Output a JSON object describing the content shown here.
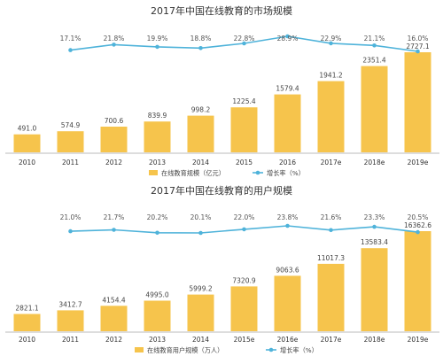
{
  "colors": {
    "bar": "#F6C44C",
    "line": "#4FB3DA",
    "axis": "#BBBBBB",
    "text": "#333333"
  },
  "chart_data": [
    {
      "type": "bar",
      "title": "2017年中国在线教育的市场规模",
      "categories": [
        "2010",
        "2011",
        "2012",
        "2013",
        "2014",
        "2015",
        "2016",
        "2017e",
        "2018e",
        "2019e"
      ],
      "series": [
        {
          "name": "在线教育规模（亿元）",
          "type": "bar",
          "values": [
            491.0,
            574.9,
            700.6,
            839.9,
            998.2,
            1225.4,
            1579.4,
            1941.2,
            2351.4,
            2727.1
          ],
          "labels": [
            "491.0",
            "574.9",
            "700.6",
            "839.9",
            "998.2",
            "1225.4",
            "1579.4",
            "1941.2",
            "2351.4",
            "2727.1"
          ]
        },
        {
          "name": "增长率（%）",
          "type": "line",
          "values": [
            null,
            17.1,
            21.8,
            19.9,
            18.8,
            22.8,
            28.9,
            22.9,
            21.1,
            16.0
          ],
          "labels": [
            "",
            "17.1%",
            "21.8%",
            "19.9%",
            "18.8%",
            "22.8%",
            "28.9%",
            "22.9%",
            "21.1%",
            "16.0%"
          ]
        }
      ],
      "legend_position": "bottom",
      "grid": false
    },
    {
      "type": "bar",
      "title": "2017年中国在线教育的用户规模",
      "categories": [
        "2010",
        "2011",
        "2012",
        "2013",
        "2014",
        "2015e",
        "2016e",
        "2017e",
        "2018e",
        "2019e"
      ],
      "series": [
        {
          "name": "在线教育用户规模（万人）",
          "type": "bar",
          "values": [
            2821.1,
            3412.7,
            4154.4,
            4995.0,
            5999.2,
            7320.9,
            9063.6,
            11017.3,
            13583.4,
            16362.6
          ],
          "labels": [
            "2821.1",
            "3412.7",
            "4154.4",
            "4995.0",
            "5999.2",
            "7320.9",
            "9063.6",
            "11017.3",
            "13583.4",
            "16362.6"
          ]
        },
        {
          "name": "增长率（%）",
          "type": "line",
          "values": [
            null,
            21.0,
            21.7,
            20.2,
            20.1,
            22.0,
            23.8,
            21.6,
            23.3,
            20.5
          ],
          "labels": [
            "",
            "21.0%",
            "21.7%",
            "20.2%",
            "20.1%",
            "22.0%",
            "23.8%",
            "21.6%",
            "23.3%",
            "20.5%"
          ]
        }
      ],
      "legend_position": "bottom",
      "grid": false
    }
  ]
}
